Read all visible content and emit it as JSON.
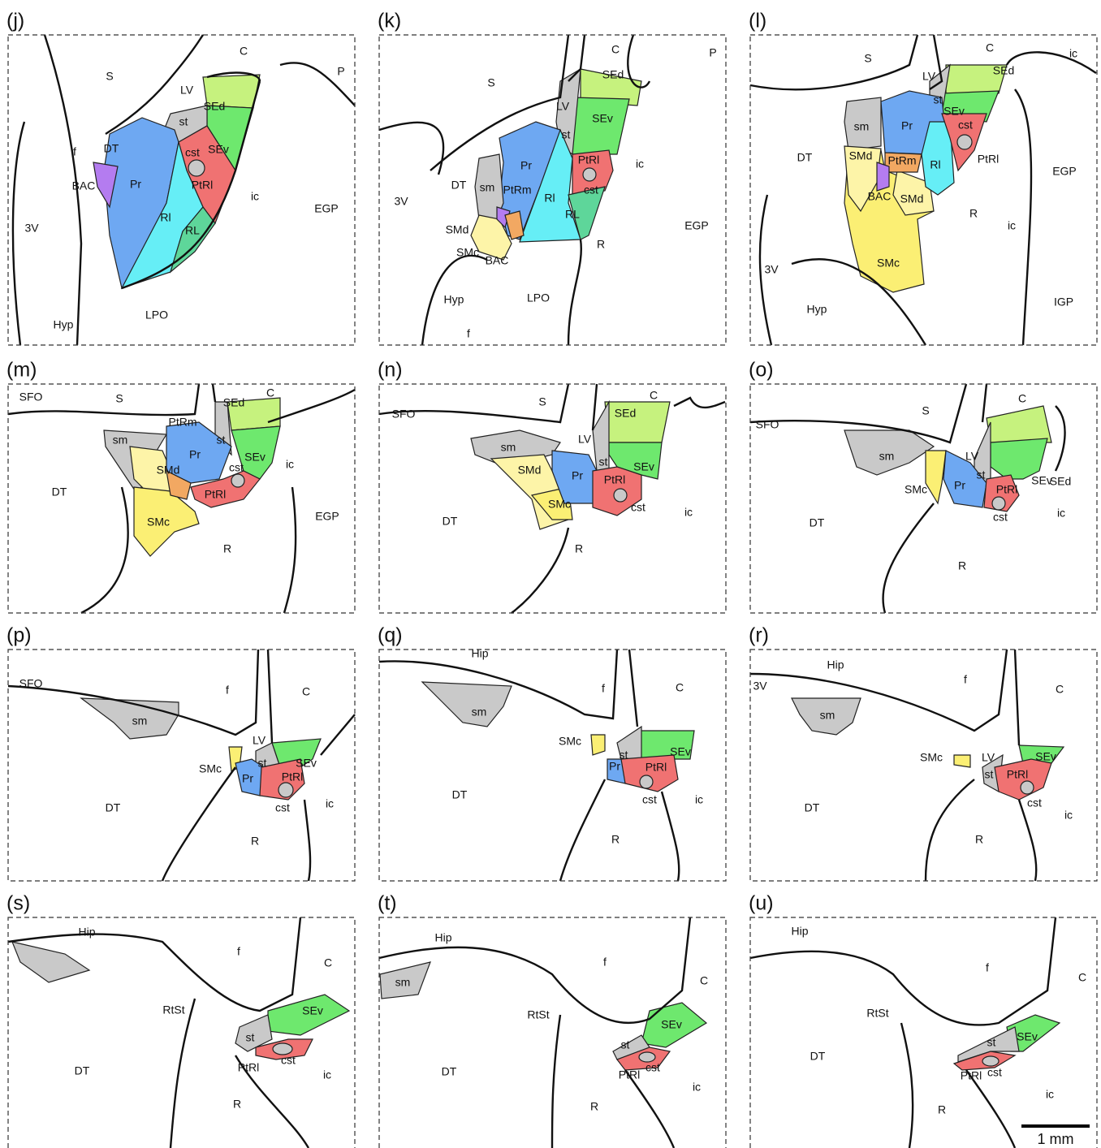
{
  "panels": [
    {
      "id": "(j)",
      "labels": [
        "C",
        "P",
        "S",
        "LV",
        "SEd",
        "st",
        "SEv",
        "f",
        "DT",
        "cst",
        "BAC",
        "Pr",
        "PtRl",
        "ic",
        "EGP",
        "3V",
        "Rl",
        "RL",
        "Hyp",
        "LPO"
      ]
    },
    {
      "id": "(k)",
      "labels": [
        "C",
        "P",
        "S",
        "SEd",
        "LV",
        "SEv",
        "st",
        "Pr",
        "PtRl",
        "ic",
        "3V",
        "DT",
        "sm",
        "PtRm",
        "Rl",
        "RL",
        "cst",
        "EGP",
        "SMd",
        "SMc",
        "BAC",
        "R",
        "Hyp",
        "LPO",
        "f"
      ]
    },
    {
      "id": "(l)",
      "labels": [
        "S",
        "C",
        "ic",
        "LV",
        "SEd",
        "st",
        "Pr",
        "SEv",
        "sm",
        "cst",
        "DT",
        "SMd",
        "PtRm",
        "Rl",
        "PtRl",
        "EGP",
        "BAC",
        "SMd",
        "R",
        "ic",
        "3V",
        "SMc",
        "Hyp",
        "IGP"
      ]
    },
    {
      "id": "(m)",
      "labels": [
        "SFO",
        "S",
        "C",
        "SEd",
        "PtRm",
        "sm",
        "st",
        "Pr",
        "SEv",
        "cst",
        "ic",
        "DT",
        "SMd",
        "PtRl",
        "EGP",
        "SMc",
        "R"
      ]
    },
    {
      "id": "(n)",
      "labels": [
        "SFO",
        "S",
        "C",
        "SEd",
        "sm",
        "LV",
        "SEv",
        "st",
        "SMd",
        "Pr",
        "PtRl",
        "DT",
        "cst",
        "ic",
        "SMc",
        "R"
      ]
    },
    {
      "id": "(o)",
      "labels": [
        "SFO",
        "S",
        "C",
        "sm",
        "LV",
        "SEd",
        "st",
        "SMc",
        "Pr",
        "PtRl",
        "SEv",
        "DT",
        "cst",
        "ic",
        "R"
      ]
    },
    {
      "id": "(p)",
      "labels": [
        "SFO",
        "f",
        "C",
        "sm",
        "LV",
        "SEv",
        "st",
        "SMc",
        "Pr",
        "PtRl",
        "DT",
        "cst",
        "ic",
        "R"
      ]
    },
    {
      "id": "(q)",
      "labels": [
        "Hip",
        "f",
        "C",
        "sm",
        "SMc",
        "SEv",
        "st",
        "Pr",
        "PtRl",
        "DT",
        "cst",
        "ic",
        "R"
      ]
    },
    {
      "id": "(r)",
      "labels": [
        "Hip",
        "3V",
        "f",
        "C",
        "sm",
        "SMc",
        "LV",
        "SEv",
        "st",
        "PtRl",
        "DT",
        "cst",
        "ic",
        "R"
      ]
    },
    {
      "id": "(s)",
      "labels": [
        "Hip",
        "f",
        "C",
        "SEv",
        "RtSt",
        "st",
        "DT",
        "cst",
        "PtRl",
        "ic",
        "R"
      ]
    },
    {
      "id": "(t)",
      "labels": [
        "Hip",
        "f",
        "C",
        "sm",
        "RtSt",
        "SEv",
        "st",
        "DT",
        "cst",
        "PtRl",
        "ic",
        "R"
      ]
    },
    {
      "id": "(u)",
      "labels": [
        "Hip",
        "f",
        "C",
        "RtSt",
        "SEv",
        "st",
        "DT",
        "PtRl",
        "cst",
        "ic",
        "R"
      ]
    }
  ],
  "scale_bar": "1 mm"
}
